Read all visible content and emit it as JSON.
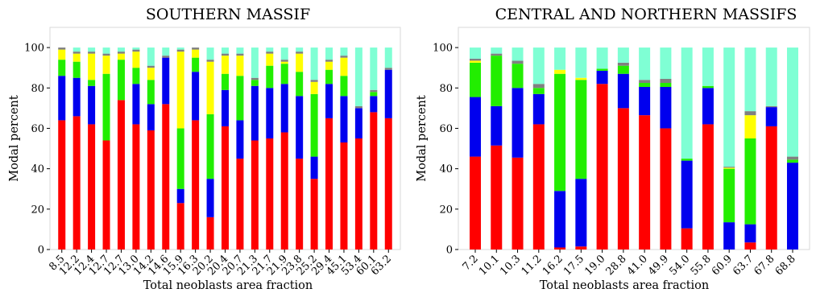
{
  "figure": {
    "y_axis_label": "Modal percent",
    "x_axis_label": "Total neoblasts area fraction"
  },
  "colors": {
    "red": "#ff0000",
    "blue": "#0000ee",
    "green": "#22ee00",
    "yellow": "#ffff00",
    "gray": "#808080",
    "aquamarine": "#7fffd4"
  },
  "chart_data": [
    {
      "type": "bar",
      "stacked": true,
      "title": "SOUTHERN  MASSIF",
      "xlabel": "Total neoblasts area fraction",
      "ylabel": "Modal percent",
      "ylim": [
        0,
        110
      ],
      "yticks": [
        0,
        20,
        40,
        60,
        80,
        100
      ],
      "grid": false,
      "categories": [
        "8.5",
        "12.2",
        "12.4",
        "12.7",
        "12.7",
        "13.0",
        "14.2",
        "14.6",
        "15.9",
        "16.3",
        "20.2",
        "20.4",
        "20.7",
        "21.3",
        "21.7",
        "21.9",
        "23.8",
        "25.2",
        "29.4",
        "45.1",
        "53.4",
        "60.1",
        "63.2"
      ],
      "series": [
        {
          "color": "red",
          "values": [
            64,
            66,
            62,
            54,
            74,
            62,
            59,
            72,
            23,
            64,
            16,
            61,
            45,
            54,
            55,
            58,
            45,
            35,
            65,
            53,
            55,
            68,
            65
          ]
        },
        {
          "color": "blue",
          "values": [
            22,
            19,
            19,
            0,
            0,
            20,
            13,
            23,
            7,
            24,
            19,
            18,
            19,
            27,
            25,
            24,
            31,
            11,
            17,
            23,
            15,
            8,
            24
          ]
        },
        {
          "color": "green",
          "values": [
            8,
            8,
            3,
            33,
            20,
            8,
            12,
            0,
            30,
            7,
            32,
            8,
            22,
            3,
            11,
            10,
            12,
            31,
            7,
            10,
            0,
            2,
            0
          ]
        },
        {
          "color": "yellow",
          "values": [
            5,
            4,
            13,
            9,
            3,
            8,
            6,
            0,
            38,
            4,
            26,
            9,
            10,
            0,
            6,
            1,
            9,
            6,
            4,
            9,
            0,
            0,
            0
          ]
        },
        {
          "color": "gray",
          "values": [
            1,
            1,
            1,
            1,
            1,
            1,
            1,
            1,
            1,
            1,
            1,
            1,
            1,
            1,
            1,
            1,
            1,
            1,
            1,
            1,
            1,
            1,
            1
          ]
        },
        {
          "color": "aquamarine",
          "values": [
            0,
            2,
            2,
            3,
            2,
            1,
            9,
            4,
            1,
            0,
            6,
            3,
            3,
            15,
            2,
            6,
            2,
            16,
            6,
            4,
            29,
            21,
            10
          ]
        }
      ]
    },
    {
      "type": "bar",
      "stacked": true,
      "title": "CENTRAL AND NORTHERN MASSIFS",
      "xlabel": "Total neoblasts area fraction",
      "ylabel": "Modal percent",
      "ylim": [
        0,
        110
      ],
      "yticks": [
        0,
        20,
        40,
        60,
        80,
        100
      ],
      "grid": false,
      "categories": [
        "7.2",
        "10.1",
        "10.3",
        "11.2",
        "16.2",
        "17.5",
        "19.0",
        "28.8",
        "41.0",
        "49.9",
        "54.0",
        "55.8",
        "60.9",
        "63.7",
        "67.8",
        "68.8"
      ],
      "series": [
        {
          "color": "red",
          "values": [
            46,
            51.5,
            45.5,
            62,
            1,
            1.5,
            82,
            70,
            66.5,
            60,
            10.5,
            62,
            0,
            3.5,
            61,
            0
          ]
        },
        {
          "color": "blue",
          "values": [
            29.5,
            19.5,
            34.5,
            15,
            28,
            33.5,
            6.5,
            17,
            14,
            20.5,
            33.5,
            18,
            13.5,
            9,
            9.5,
            43
          ]
        },
        {
          "color": "green",
          "values": [
            17,
            25,
            12,
            3,
            58,
            49,
            1,
            4,
            2,
            2,
            1,
            1,
            26.5,
            42.5,
            0,
            1.5
          ]
        },
        {
          "color": "yellow",
          "values": [
            1,
            0,
            0,
            0,
            2,
            1,
            0,
            0,
            0,
            0,
            0,
            0,
            0.5,
            11.5,
            0,
            0
          ]
        },
        {
          "color": "gray",
          "values": [
            1,
            1,
            1.5,
            2,
            0,
            0,
            0,
            1.5,
            1.5,
            2,
            0,
            0,
            0.5,
            2,
            0.5,
            1.5
          ]
        },
        {
          "color": "aquamarine",
          "values": [
            5.5,
            3,
            6.5,
            18,
            11,
            15,
            10.5,
            7.5,
            16,
            15.5,
            55,
            19,
            59,
            31.5,
            29,
            54
          ]
        }
      ]
    }
  ]
}
